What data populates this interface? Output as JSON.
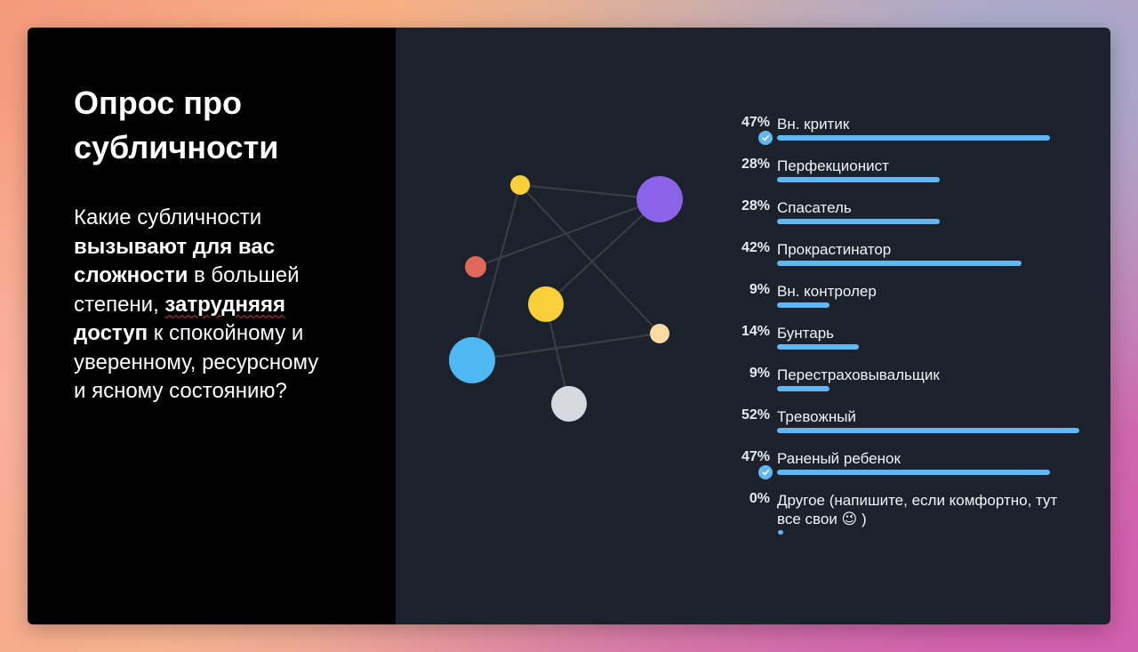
{
  "left": {
    "title": "Опрос про субличности",
    "question": [
      {
        "text": "Какие субличности ",
        "bold": false
      },
      {
        "text": "вызывают для вас сложности",
        "bold": true
      },
      {
        "text": " в большей степени, ",
        "bold": false
      },
      {
        "text": "затрудняяя",
        "bold": true,
        "squiggle": true
      },
      {
        "text": " доступ",
        "bold": true
      },
      {
        "text": " к спокойному и уверенному, ресурсному и ясному состоянию?",
        "bold": false
      }
    ]
  },
  "graph": {
    "nodes": [
      {
        "id": "n1",
        "color": "#f9cf3a"
      },
      {
        "id": "n2",
        "color": "#8b63e8"
      },
      {
        "id": "n3",
        "color": "#e0685b"
      },
      {
        "id": "n4",
        "color": "#f9cf3a"
      },
      {
        "id": "n5",
        "color": "#fcd9a2"
      },
      {
        "id": "n6",
        "color": "#4fb8f3"
      },
      {
        "id": "n7",
        "color": "#d6d9df"
      }
    ],
    "edges": [
      [
        "n1",
        "n2"
      ],
      [
        "n1",
        "n6"
      ],
      [
        "n1",
        "n5"
      ],
      [
        "n3",
        "n2"
      ],
      [
        "n4",
        "n2"
      ],
      [
        "n4",
        "n7"
      ],
      [
        "n6",
        "n5"
      ]
    ],
    "edge_color": "#3b3f44"
  },
  "chart_data": {
    "type": "bar",
    "orientation": "horizontal",
    "categories": [
      "Вн. критик",
      "Перфекционист",
      "Спасатель",
      "Прокрастинатор",
      "Вн. контролер",
      "Бунтарь",
      "Перестраховывальщик",
      "Тревожный",
      "Раненый ребенок",
      "Другое (напишите, если комфортно, тут все свои 😉 )"
    ],
    "percent_labels": [
      "47%",
      "28%",
      "28%",
      "42%",
      "9%",
      "14%",
      "9%",
      "52%",
      "47%",
      "0%"
    ],
    "values": [
      47,
      28,
      28,
      42,
      9,
      14,
      9,
      52,
      47,
      0
    ],
    "checked": [
      true,
      false,
      false,
      false,
      false,
      false,
      false,
      false,
      true,
      false
    ],
    "bar_color": "#5fb8f4"
  }
}
